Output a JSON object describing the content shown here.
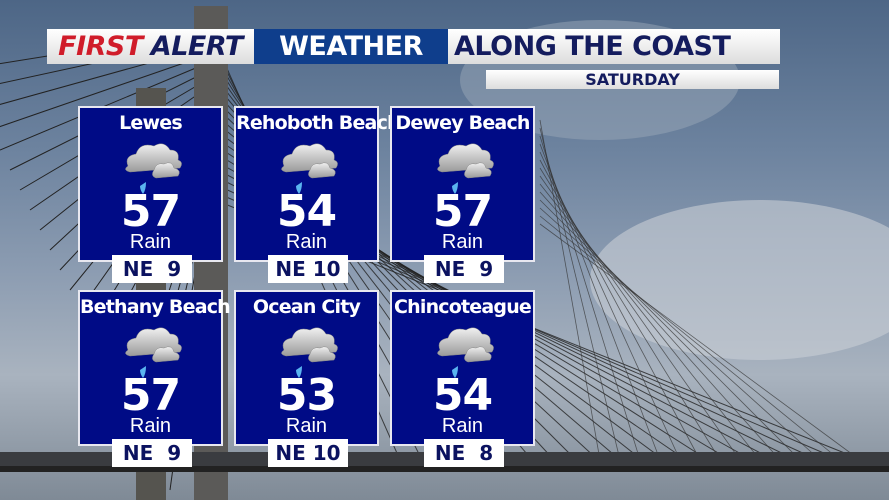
{
  "header": {
    "first": "FIRST",
    "alert": "ALERT",
    "weather": "WEATHER",
    "title": "ALONG THE COAST",
    "day": "SATURDAY"
  },
  "colors": {
    "panel": "#000b86",
    "accent_red": "#d01c2a",
    "header_blue": "#0f3e8c",
    "navy_text": "#141c5e"
  },
  "locations": [
    {
      "name": "Lewes",
      "temp": "57",
      "condition": "Rain",
      "wind": "NE  9",
      "icon": "cloud-rain-icon"
    },
    {
      "name": "Rehoboth Beach",
      "temp": "54",
      "condition": "Rain",
      "wind": "NE 10",
      "icon": "cloud-rain-icon"
    },
    {
      "name": "Dewey Beach",
      "temp": "57",
      "condition": "Rain",
      "wind": "NE  9",
      "icon": "cloud-rain-icon"
    },
    {
      "name": "Bethany Beach",
      "temp": "57",
      "condition": "Rain",
      "wind": "NE  9",
      "icon": "cloud-rain-icon"
    },
    {
      "name": "Ocean City",
      "temp": "53",
      "condition": "Rain",
      "wind": "NE 10",
      "icon": "cloud-rain-icon"
    },
    {
      "name": "Chincoteague",
      "temp": "54",
      "condition": "Rain",
      "wind": "NE  8",
      "icon": "cloud-rain-icon"
    }
  ]
}
